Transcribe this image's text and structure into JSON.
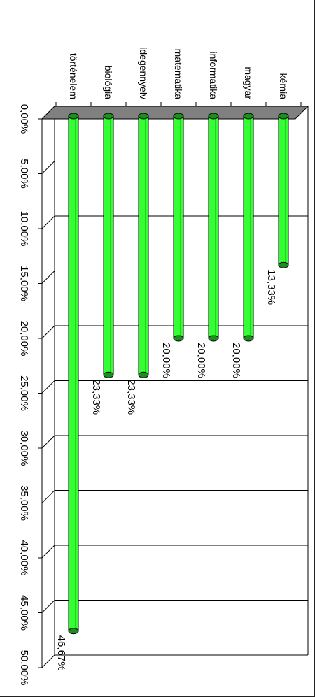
{
  "chart_data": {
    "type": "bar",
    "orientation": "horizontal",
    "title": "",
    "xlabel": "",
    "ylabel": "",
    "categories": [
      "kémia",
      "magyar",
      "informatika",
      "matematika",
      "idegennyelv",
      "biológia",
      "történelem"
    ],
    "values": [
      13.33,
      20.0,
      20.0,
      20.0,
      23.33,
      23.33,
      46.67
    ],
    "value_labels": [
      "13,33%",
      "20,00%",
      "20,00%",
      "20,00%",
      "23,33%",
      "23,33%",
      "46,67%"
    ],
    "ticks": [
      "0,00%",
      "5,00%",
      "10,00%",
      "15,00%",
      "20,00%",
      "25,00%",
      "30,00%",
      "35,00%",
      "40,00%",
      "45,00%",
      "50,00%"
    ],
    "xlim": [
      0,
      50
    ],
    "grid": true,
    "legend": "none",
    "bar_color": "#33ff33",
    "bar_edge_color": "#000000",
    "floor_color": "#808080"
  }
}
